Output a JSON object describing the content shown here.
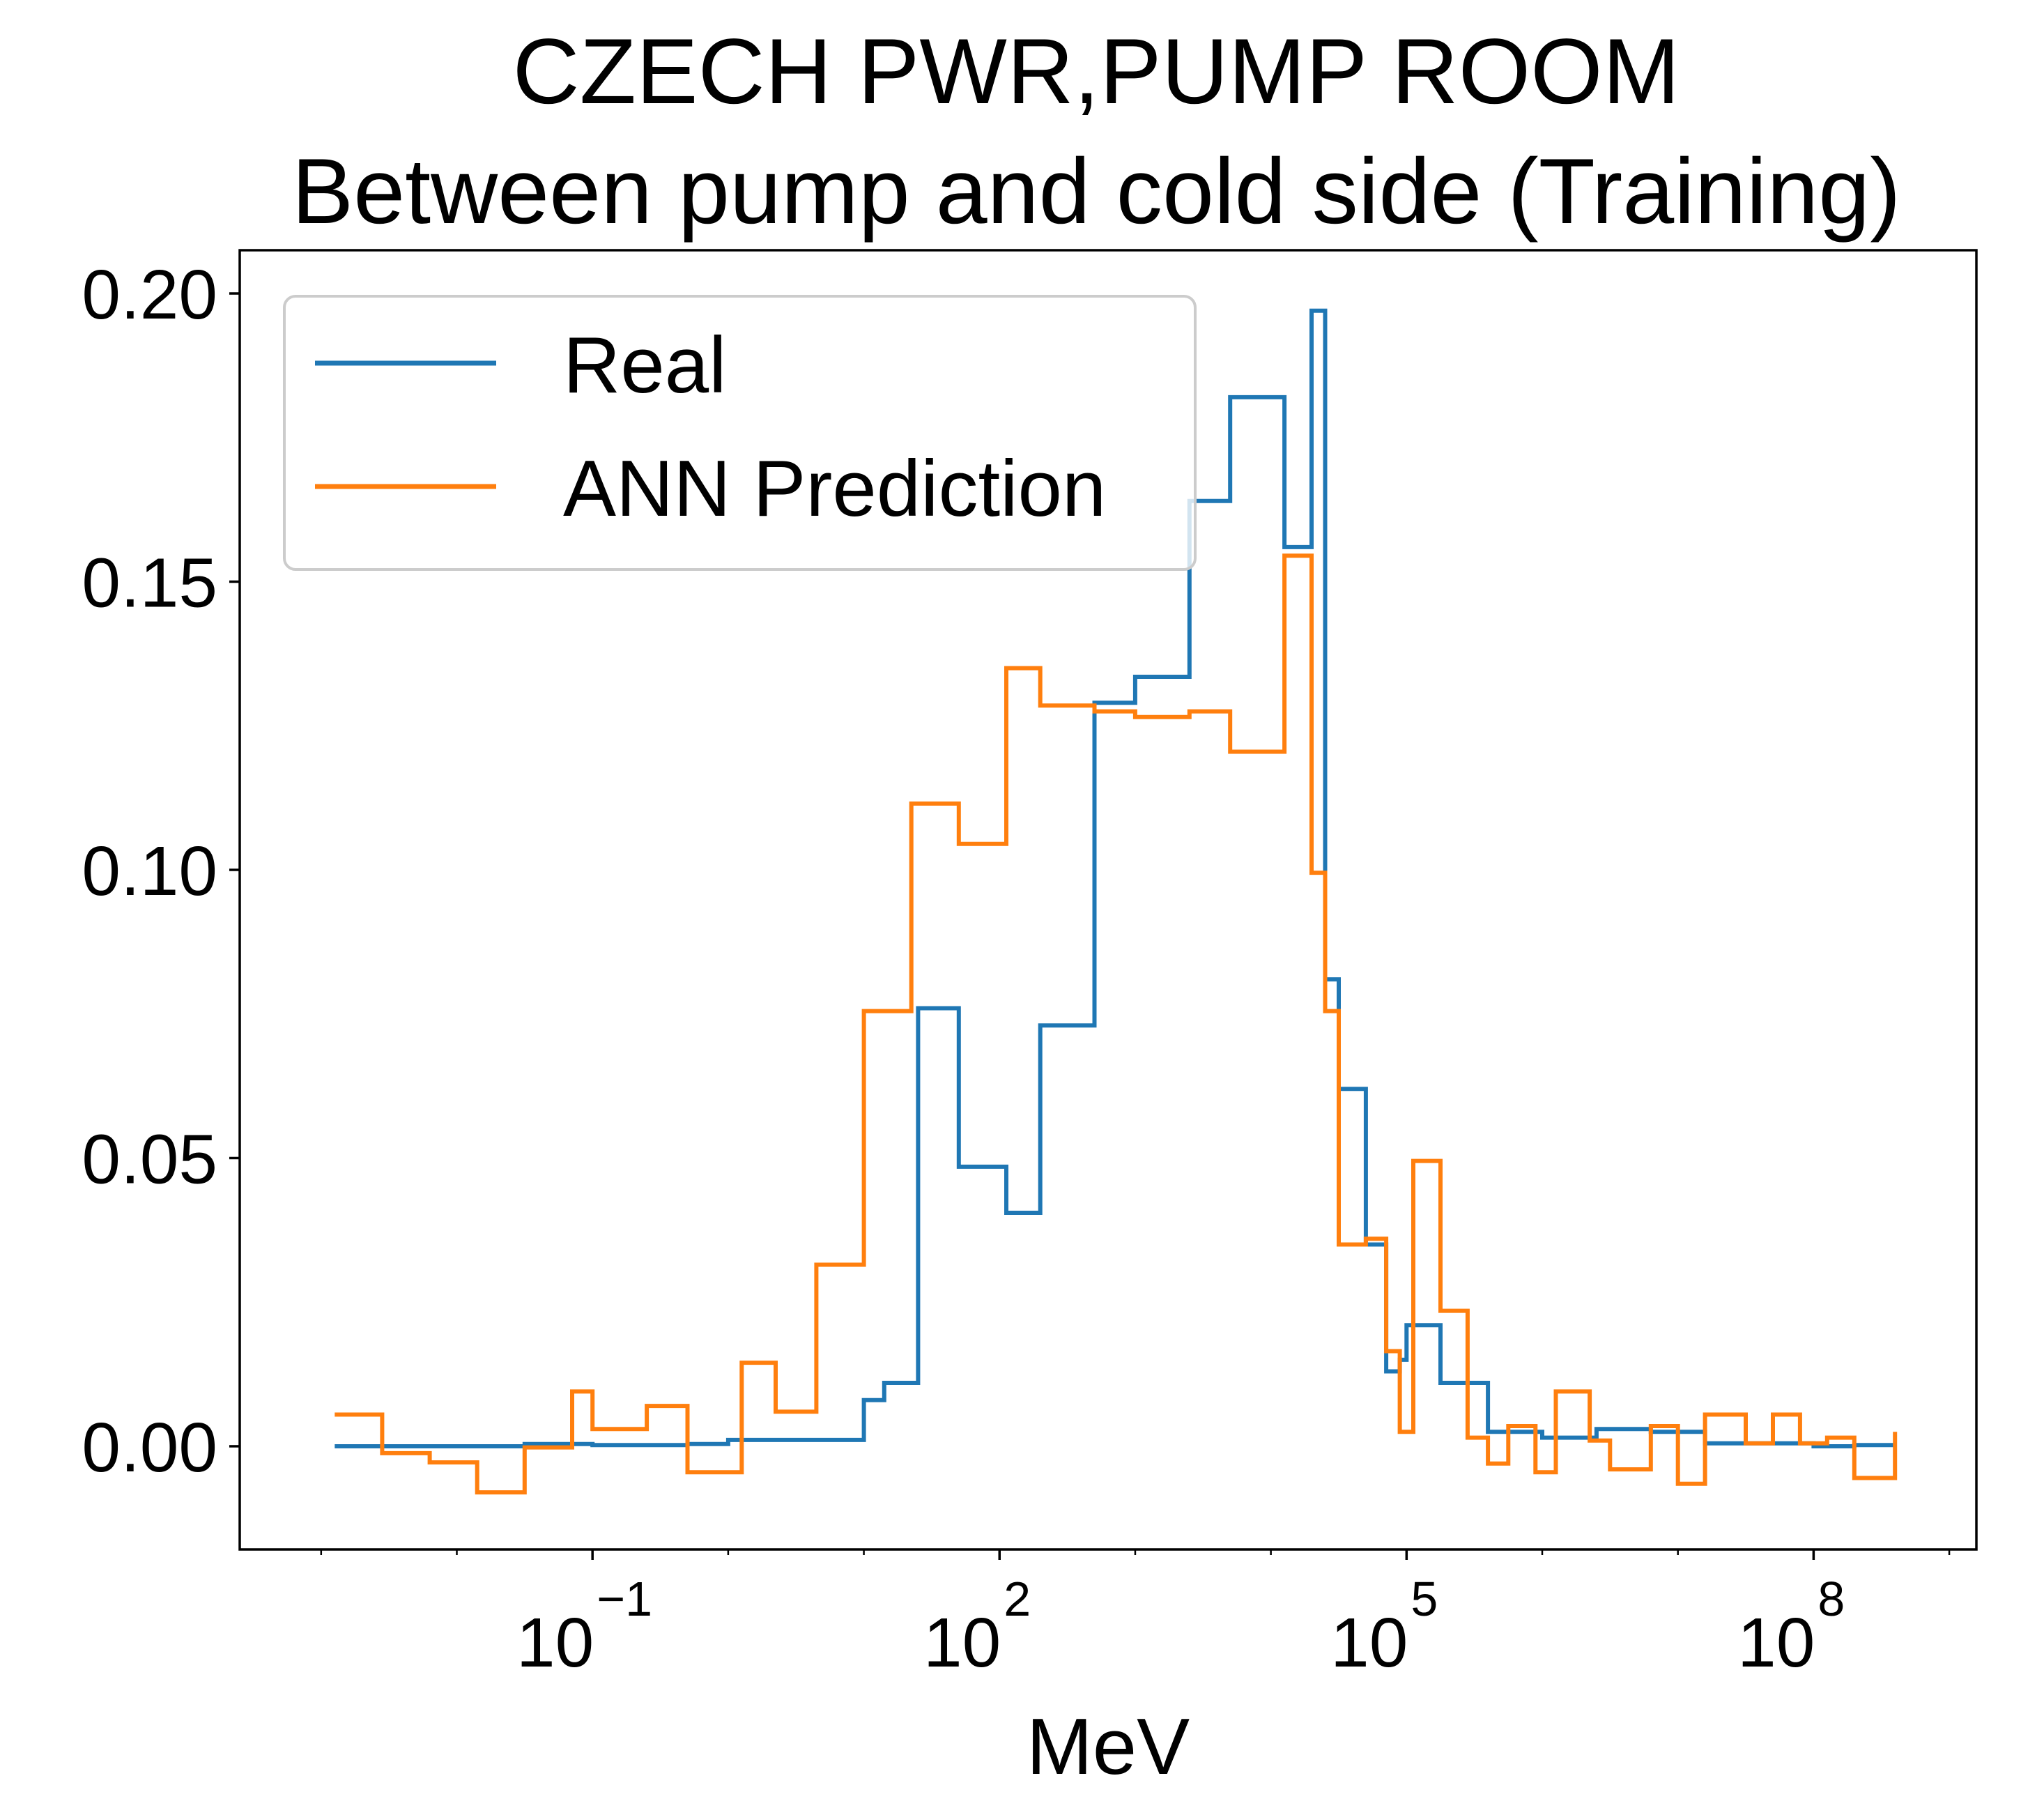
{
  "chart_data": {
    "type": "line",
    "title": [
      "CZECH PWR,PUMP ROOM",
      "Between pump and cold side (Training)"
    ],
    "xlabel": "MeV",
    "ylabel": "",
    "x_scale": "log",
    "x_domain_log10": [
      -3.6,
      9.2
    ],
    "xlim": [
      0.000251,
      1585000000
    ],
    "ylim": [
      -0.0179,
      0.2075
    ],
    "x_ticks": [
      {
        "base": "10",
        "exp": "−1",
        "log10": -1
      },
      {
        "base": "10",
        "exp": "2",
        "log10": 2
      },
      {
        "base": "10",
        "exp": "5",
        "log10": 5
      },
      {
        "base": "10",
        "exp": "8",
        "log10": 8
      }
    ],
    "y_ticks": [
      "0.00",
      "0.05",
      "0.10",
      "0.15",
      "0.20"
    ],
    "y_tick_values": [
      0,
      0.05,
      0.1,
      0.15,
      0.2
    ],
    "grid": false,
    "legend": {
      "position": "upper-left"
    },
    "series": [
      {
        "name": "Real",
        "color": "#1f77b4",
        "step": "post",
        "x_log10": [
          -2.9,
          -2.55,
          -2.2,
          -1.5,
          -1.0,
          -0.3,
          0.0,
          1.0,
          1.15,
          1.4,
          1.7,
          2.05,
          2.3,
          2.7,
          3.0,
          3.4,
          3.7,
          4.1,
          4.3,
          4.4,
          4.5,
          4.7,
          4.85,
          4.95,
          5.0,
          5.25,
          5.6,
          6.0,
          6.4,
          6.8,
          7.2,
          8.0,
          8.3,
          8.6
        ],
        "y": [
          0.0,
          0.0,
          0.0,
          0.0004,
          0.0002,
          0.0004,
          0.0011,
          0.008,
          0.011,
          0.076,
          0.0485,
          0.0405,
          0.073,
          0.129,
          0.1335,
          0.164,
          0.182,
          0.156,
          0.197,
          0.081,
          0.062,
          0.035,
          0.013,
          0.015,
          0.021,
          0.011,
          0.0025,
          0.0015,
          0.003,
          0.0025,
          0.0005,
          0.0,
          0.0002,
          0.0002
        ]
      },
      {
        "name": "ANN Prediction",
        "color": "#ff7f0e",
        "step": "post",
        "x_log10": [
          -2.9,
          -2.55,
          -2.2,
          -1.85,
          -1.5,
          -1.15,
          -1.0,
          -0.6,
          -0.3,
          0.1,
          0.35,
          0.65,
          1.0,
          1.35,
          1.7,
          2.05,
          2.3,
          2.7,
          3.0,
          3.4,
          3.7,
          4.1,
          4.3,
          4.4,
          4.5,
          4.7,
          4.85,
          4.95,
          5.05,
          5.25,
          5.45,
          5.6,
          5.75,
          5.95,
          6.1,
          6.35,
          6.5,
          6.8,
          7.0,
          7.2,
          7.5,
          7.7,
          7.9,
          8.1,
          8.3,
          8.6
        ],
        "y": [
          0.0055,
          -0.0012,
          -0.0028,
          -0.008,
          -0.0002,
          0.0095,
          0.003,
          0.007,
          -0.0045,
          0.0145,
          0.006,
          0.0315,
          0.0755,
          0.1115,
          0.1045,
          0.135,
          0.1285,
          0.1275,
          0.1265,
          0.1275,
          0.1205,
          0.1545,
          0.0995,
          0.0755,
          0.035,
          0.036,
          0.0165,
          0.0025,
          0.0495,
          0.0235,
          0.0015,
          -0.003,
          0.0035,
          -0.0045,
          0.0095,
          0.001,
          -0.004,
          0.0035,
          -0.0065,
          0.0055,
          0.0005,
          0.0055,
          0.0005,
          0.0015,
          -0.0055,
          0.0025
        ]
      }
    ]
  }
}
